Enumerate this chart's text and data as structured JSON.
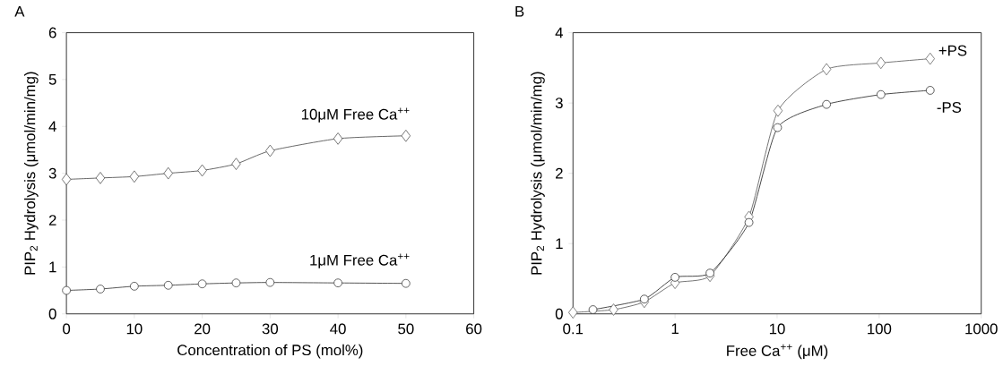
{
  "chart_data": [
    {
      "type": "line",
      "title": "A",
      "xlabel": "Concentration of PS (mol%)",
      "ylabel": "PIP$_{2}$ Hydrolysis (μmol/min/mg)",
      "xlim": [
        0,
        60
      ],
      "ylim": [
        0,
        6
      ],
      "xticks": [
        0,
        10,
        20,
        30,
        40,
        50,
        60
      ],
      "yticks": [
        0,
        1,
        2,
        3,
        4,
        5,
        6
      ],
      "series": [
        {
          "name": "10μM Free Ca$^{++}$",
          "color": "#555555",
          "marker": "diamond",
          "x": [
            0,
            5,
            10,
            15,
            20,
            25,
            30,
            40,
            50
          ],
          "values": [
            2.87,
            2.9,
            2.93,
            3.0,
            3.06,
            3.2,
            3.48,
            3.74,
            3.8
          ]
        },
        {
          "name": "1μM Free Ca$^{++}$",
          "color": "#404040",
          "marker": "circle",
          "x": [
            0,
            5,
            10,
            15,
            20,
            25,
            30,
            40,
            50
          ],
          "values": [
            0.5,
            0.53,
            0.59,
            0.61,
            0.64,
            0.66,
            0.67,
            0.66,
            0.65
          ]
        }
      ]
    },
    {
      "type": "line",
      "title": "B",
      "xlabel": "Free Ca$^{++}$ (μM)",
      "ylabel": "PIP$_{2}$ Hydrolysis (μmol/min/mg)",
      "log": "x",
      "xlim": [
        0.1,
        1000
      ],
      "ylim": [
        0,
        4
      ],
      "xticks": [
        0.1,
        1,
        10,
        100,
        1000
      ],
      "yticks": [
        0,
        1,
        2,
        3,
        4
      ],
      "series": [
        {
          "name": "+PS",
          "color": "#666666",
          "marker": "diamond",
          "x": [
            0.1,
            0.25,
            0.5,
            1,
            2.2,
            5.3,
            10.2,
            30.5,
            104,
            316
          ],
          "values": [
            0.02,
            0.06,
            0.17,
            0.44,
            0.54,
            1.38,
            2.89,
            3.48,
            3.57,
            3.63
          ]
        },
        {
          "name": "-PS",
          "color": "#333333",
          "marker": "circle",
          "x": [
            0.157,
            0.5,
            1,
            2.2,
            5.3,
            10.1,
            30.5,
            104,
            316
          ],
          "values": [
            0.06,
            0.21,
            0.52,
            0.58,
            1.3,
            2.65,
            2.98,
            3.12,
            3.18
          ]
        }
      ]
    }
  ]
}
